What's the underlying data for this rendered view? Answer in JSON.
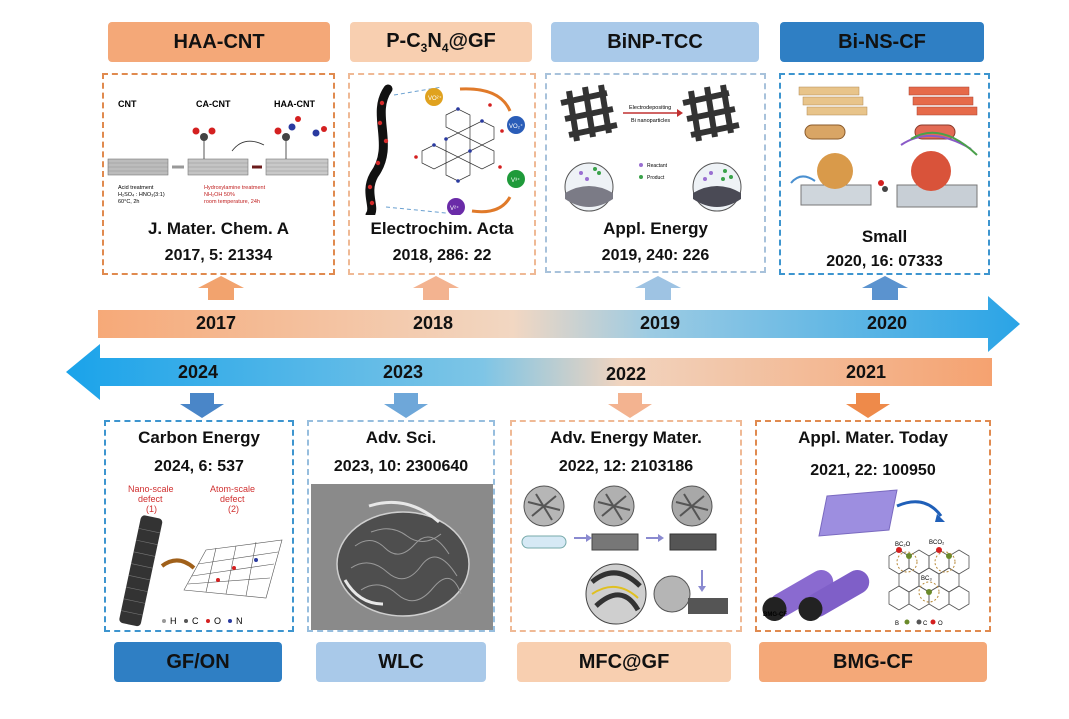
{
  "colors": {
    "orange_dark": "#e08640",
    "orange_light": "#f6c7a3",
    "blue_light": "#9fc4e6",
    "blue_dark": "#2f80c5",
    "border_orange": "#e39a62",
    "border_blue": "#4a9ad3"
  },
  "top": [
    {
      "label": "HAA-CNT",
      "journal": "J. Mater. Chem. A",
      "citation": "2017, 5: 21334",
      "year": "2017"
    },
    {
      "label_main": "P-C",
      "label_sub1": "3",
      "label_mid": "N",
      "label_sub2": "4",
      "label_tail": "@GF",
      "journal": "Electrochim. Acta",
      "citation": "2018, 286: 22",
      "year": "2018"
    },
    {
      "label": "BiNP-TCC",
      "journal": "Appl. Energy",
      "citation": "2019, 240: 226",
      "year": "2019"
    },
    {
      "label": "Bi-NS-CF",
      "journal": "Small",
      "citation": "2020, 16: 07333",
      "year": "2020"
    }
  ],
  "bottom": [
    {
      "label": "GF/ON",
      "journal": "Carbon Energy",
      "citation": "2024, 6: 537",
      "year": "2024"
    },
    {
      "label": "WLC",
      "journal": "Adv. Sci.",
      "citation": "2023, 10: 2300640",
      "year": "2023"
    },
    {
      "label": "MFC@GF",
      "journal": "Adv. Energy Mater.",
      "citation": "2022, 12: 2103186",
      "year": "2022"
    },
    {
      "label": "BMG-CF",
      "journal": "Appl. Mater. Today",
      "citation": "2021, 22: 100950",
      "year": "2021"
    }
  ],
  "figure_text": {
    "cnt": "CNT",
    "ca_cnt": "CA-CNT",
    "haa_cnt": "HAA-CNT",
    "acid_1": "Acid treatment",
    "acid_2": "H₂SO₄ : HNO₃(3:1)",
    "acid_3": "60°C, 2h",
    "hyd_1": "Hydroxylamine treatment",
    "hyd_2": "NH₂OH 50%",
    "hyd_3": "room temperature, 24h",
    "electrodepositing": "Electrodepositing",
    "bi_nanoparticles": "Bi nanoparticles",
    "reactant": "Reactant",
    "product": "Product",
    "nano_scale": "Nano-scale",
    "defect_1": "defect",
    "num_1": "(1)",
    "atom_scale": "Atom-scale",
    "defect_2": "defect",
    "num_2": "(2)",
    "legend_h": "H",
    "legend_c": "C",
    "legend_o": "O",
    "legend_n": "N",
    "bmg_cf": "BMG-CF",
    "bc2o": "BC₂O",
    "bco2": "BCO₂",
    "bc3": "BC₃",
    "legend_b": "B",
    "legend_c2": "C",
    "legend_o2": "O",
    "vo2": "VO²⁺",
    "vo2p": "VO₂⁺",
    "v3": "V³⁺",
    "v2": "V²⁺"
  }
}
